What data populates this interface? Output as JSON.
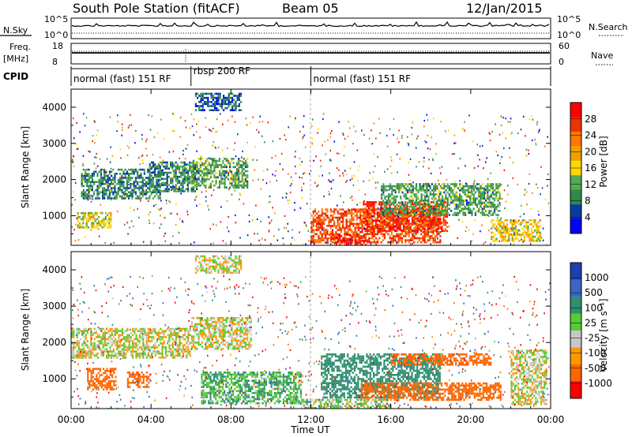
{
  "header": {
    "station": "South Pole Station (fitACF)",
    "beam": "Beam 05",
    "date": "12/Jan/2015"
  },
  "aux": {
    "nsky_label": "N.Sky",
    "nsky_ticks": [
      "10^5",
      "10^0"
    ],
    "nsearch_label": "N.Search",
    "freq_label": "Freq.",
    "freq_unit": "[MHz]",
    "freq_ticks": [
      "18",
      "8"
    ],
    "nave_label": "Nave",
    "nave_ticks": [
      "60",
      "0"
    ],
    "cpid_label": "CPID"
  },
  "cpid_segments": [
    {
      "label": "normal (fast) 151 RF",
      "start_hour": 0
    },
    {
      "label": "rbsp 200 RF",
      "start_hour": 6
    },
    {
      "label": "normal (fast) 151 RF",
      "start_hour": 12
    }
  ],
  "colorbars": {
    "power": {
      "label": "Power [dB]",
      "ticks": [
        "28",
        "24",
        "20",
        "16",
        "12",
        "8",
        "4"
      ],
      "colors": [
        "#ff0000",
        "#ee3300",
        "#ff7700",
        "#f0a000",
        "#ffd800",
        "#55aa55",
        "#2d8c46",
        "#0a3ca0",
        "#0000ff"
      ]
    },
    "velocity": {
      "label": "Velocity [m s⁻¹]",
      "ticks": [
        "1000",
        "500",
        "100",
        "25",
        "-25",
        "-100",
        "-500",
        "-1000"
      ],
      "colors": [
        "#1f3fb0",
        "#3b66c4",
        "#2f9070",
        "#55cc33",
        "#c8c8c8",
        "#ff9900",
        "#ff6600",
        "#ff0000"
      ]
    }
  },
  "xaxis": {
    "label": "Time UT",
    "ticks": [
      "00:00",
      "04:00",
      "08:00",
      "12:00",
      "16:00",
      "20:00",
      "00:00"
    ]
  },
  "chart_data": [
    {
      "type": "heatmap",
      "name": "Power",
      "ylabel": "Slant Range [km]",
      "xlabel": "Time UT",
      "xlim": [
        0,
        24
      ],
      "ylim": [
        180,
        4500
      ],
      "yticks": [
        1000,
        2000,
        3000,
        4000
      ],
      "color_range": [
        0,
        30
      ],
      "patches": [
        {
          "t0": 0.5,
          "t1": 4.5,
          "r0": 1500,
          "r1": 2300,
          "value": 8
        },
        {
          "t0": 3.9,
          "t1": 6.3,
          "r0": 1700,
          "r1": 2500,
          "value": 8
        },
        {
          "t0": 6.0,
          "t1": 8.8,
          "r0": 1800,
          "r1": 2600,
          "value": 10
        },
        {
          "t0": 6.2,
          "t1": 8.5,
          "r0": 3900,
          "r1": 4400,
          "value": 6
        },
        {
          "t0": 0.3,
          "t1": 2.0,
          "r0": 650,
          "r1": 1100,
          "value": 14
        },
        {
          "t0": 12.0,
          "t1": 18.5,
          "r0": 250,
          "r1": 1200,
          "value": 24
        },
        {
          "t0": 12.8,
          "t1": 14.8,
          "r0": 180,
          "r1": 500,
          "value": 28
        },
        {
          "t0": 14.6,
          "t1": 18.8,
          "r0": 600,
          "r1": 1400,
          "value": 26
        },
        {
          "t0": 15.5,
          "t1": 21.5,
          "r0": 1000,
          "r1": 1900,
          "value": 10
        },
        {
          "t0": 21.0,
          "t1": 23.5,
          "r0": 300,
          "r1": 900,
          "value": 16
        }
      ]
    },
    {
      "type": "heatmap",
      "name": "Velocity",
      "ylabel": "Slant Range [km]",
      "xlabel": "Time UT",
      "xlim": [
        0,
        24
      ],
      "ylim": [
        180,
        4500
      ],
      "yticks": [
        1000,
        2000,
        3000,
        4000
      ],
      "color_range": [
        -1000,
        1000
      ],
      "patches": [
        {
          "t0": 0.0,
          "t1": 6.0,
          "r0": 1600,
          "r1": 2400,
          "value": 0
        },
        {
          "t0": 6.0,
          "t1": 9.0,
          "r0": 1800,
          "r1": 2700,
          "value": 0
        },
        {
          "t0": 6.2,
          "t1": 8.5,
          "r0": 3900,
          "r1": 4400,
          "value": 0
        },
        {
          "t0": 0.8,
          "t1": 2.2,
          "r0": 700,
          "r1": 1300,
          "value": -300
        },
        {
          "t0": 2.8,
          "t1": 4.0,
          "r0": 800,
          "r1": 1200,
          "value": -300
        },
        {
          "t0": 6.5,
          "t1": 11.5,
          "r0": 350,
          "r1": 1200,
          "value": 100
        },
        {
          "t0": 12.5,
          "t1": 18.5,
          "r0": 500,
          "r1": 1700,
          "value": 300
        },
        {
          "t0": 14.5,
          "t1": 21.5,
          "r0": 400,
          "r1": 900,
          "value": -300
        },
        {
          "t0": 16.0,
          "t1": 21.0,
          "r0": 1400,
          "r1": 1700,
          "value": -200
        },
        {
          "t0": 11.5,
          "t1": 16.0,
          "r0": 180,
          "r1": 450,
          "value": 50
        },
        {
          "t0": 22.0,
          "t1": 23.8,
          "r0": 300,
          "r1": 1800,
          "value": 0
        }
      ]
    }
  ]
}
